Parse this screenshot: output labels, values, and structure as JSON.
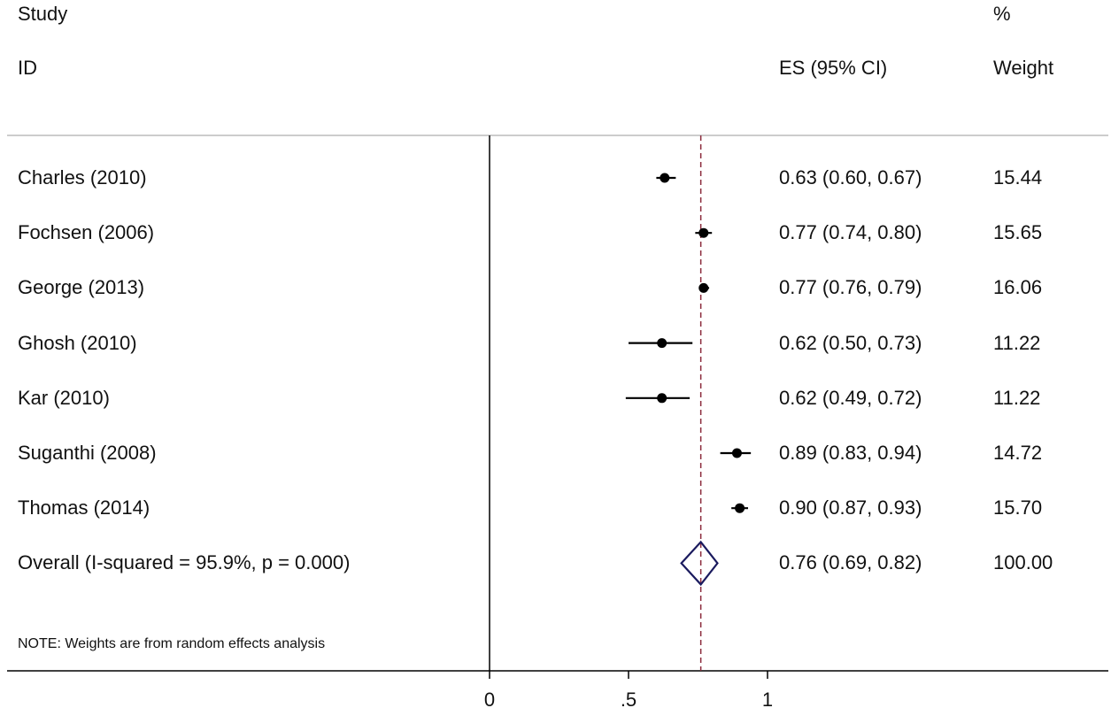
{
  "header": {
    "study_label": "Study",
    "id_label": "ID",
    "es_label": "ES (95% CI)",
    "pct_label": "%",
    "weight_label": "Weight"
  },
  "note": "NOTE: Weights are from random effects analysis",
  "chart_data": {
    "type": "forest",
    "xticks": [
      {
        "value": 0,
        "label": "0"
      },
      {
        "value": 0.5,
        "label": ".5"
      },
      {
        "value": 1,
        "label": "1"
      }
    ],
    "xlim": [
      0,
      1
    ],
    "null_line": 0,
    "overall_line": 0.76,
    "studies": [
      {
        "label": "Charles (2010)",
        "es": 0.63,
        "lo": 0.6,
        "hi": 0.67,
        "es_text": "0.63 (0.60, 0.67)",
        "weight": "15.44"
      },
      {
        "label": "Fochsen (2006)",
        "es": 0.77,
        "lo": 0.74,
        "hi": 0.8,
        "es_text": "0.77 (0.74, 0.80)",
        "weight": "15.65"
      },
      {
        "label": "George (2013)",
        "es": 0.77,
        "lo": 0.76,
        "hi": 0.79,
        "es_text": "0.77 (0.76, 0.79)",
        "weight": "16.06"
      },
      {
        "label": "Ghosh (2010)",
        "es": 0.62,
        "lo": 0.5,
        "hi": 0.73,
        "es_text": "0.62 (0.50, 0.73)",
        "weight": "11.22"
      },
      {
        "label": "Kar (2010)",
        "es": 0.62,
        "lo": 0.49,
        "hi": 0.72,
        "es_text": "0.62 (0.49, 0.72)",
        "weight": "11.22"
      },
      {
        "label": "Suganthi (2008)",
        "es": 0.89,
        "lo": 0.83,
        "hi": 0.94,
        "es_text": "0.89 (0.83, 0.94)",
        "weight": "14.72"
      },
      {
        "label": "Thomas (2014)",
        "es": 0.9,
        "lo": 0.87,
        "hi": 0.93,
        "es_text": "0.90 (0.87, 0.93)",
        "weight": "15.70"
      }
    ],
    "overall": {
      "label": "Overall  (I-squared = 95.9%, p = 0.000)",
      "es": 0.76,
      "lo": 0.69,
      "hi": 0.82,
      "es_text": "0.76 (0.69, 0.82)",
      "weight": "100.00"
    },
    "colors": {
      "marker": "#000000",
      "diamond": "#1a1a5e",
      "overall_line": "#8b2a3c",
      "header_rule": "#bbbbbb",
      "axis": "#000000"
    }
  }
}
